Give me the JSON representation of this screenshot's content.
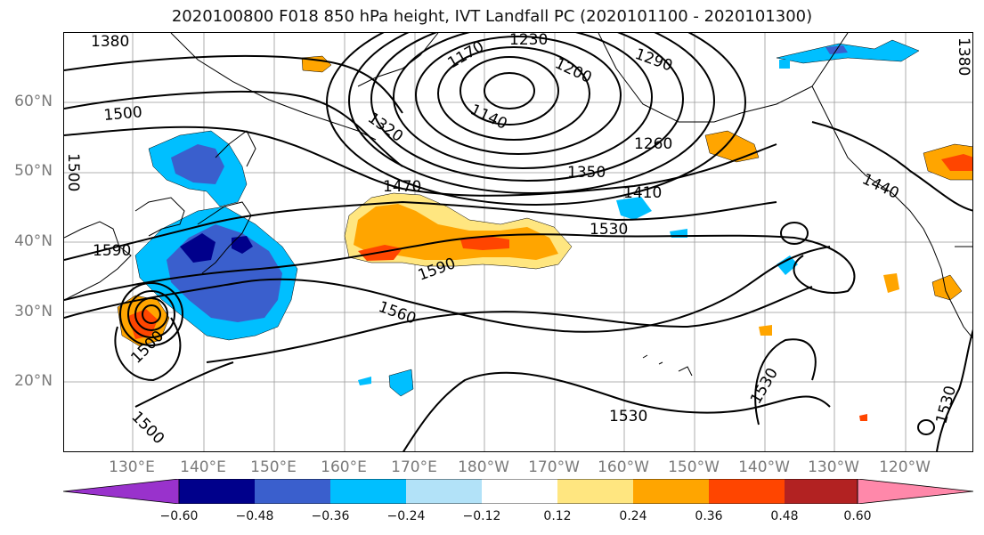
{
  "title": "2020100800 F018 850 hPa height, IVT Landfall PC (2020101100 - 2020101300)",
  "lat_labels": [
    "60°N",
    "50°N",
    "40°N",
    "30°N",
    "20°N"
  ],
  "lon_labels": [
    "130°E",
    "140°E",
    "150°E",
    "160°E",
    "170°E",
    "180°W",
    "170°W",
    "160°W",
    "150°W",
    "140°W",
    "130°W",
    "120°W"
  ],
  "contour_labels": [
    "1380",
    "1230",
    "1290",
    "1170",
    "1200",
    "1140",
    "1500",
    "1320",
    "1260",
    "1350",
    "1500",
    "1470",
    "1410",
    "1440",
    "1530",
    "1590",
    "1590",
    "1560",
    "1500",
    "1530",
    "1530",
    "1500",
    "1530",
    "1380"
  ],
  "colorbar": {
    "ticks": [
      "−0.60",
      "−0.48",
      "−0.36",
      "−0.24",
      "−0.12",
      "0.12",
      "0.24",
      "0.36",
      "0.48",
      "0.60"
    ],
    "colors": [
      "#9932cc",
      "#00008b",
      "#3a5fcd",
      "#00bfff",
      "#b2e2f8",
      "#ffffff",
      "#ffe680",
      "#ffa500",
      "#ff4500",
      "#b22222",
      "#ff88aa"
    ]
  },
  "shading_colors": {
    "dark_blue": "#00008b",
    "mid_blue": "#3a5fcd",
    "light_blue": "#00bfff",
    "yellow": "#ffe680",
    "orange": "#ffa500",
    "red": "#ff4500"
  }
}
